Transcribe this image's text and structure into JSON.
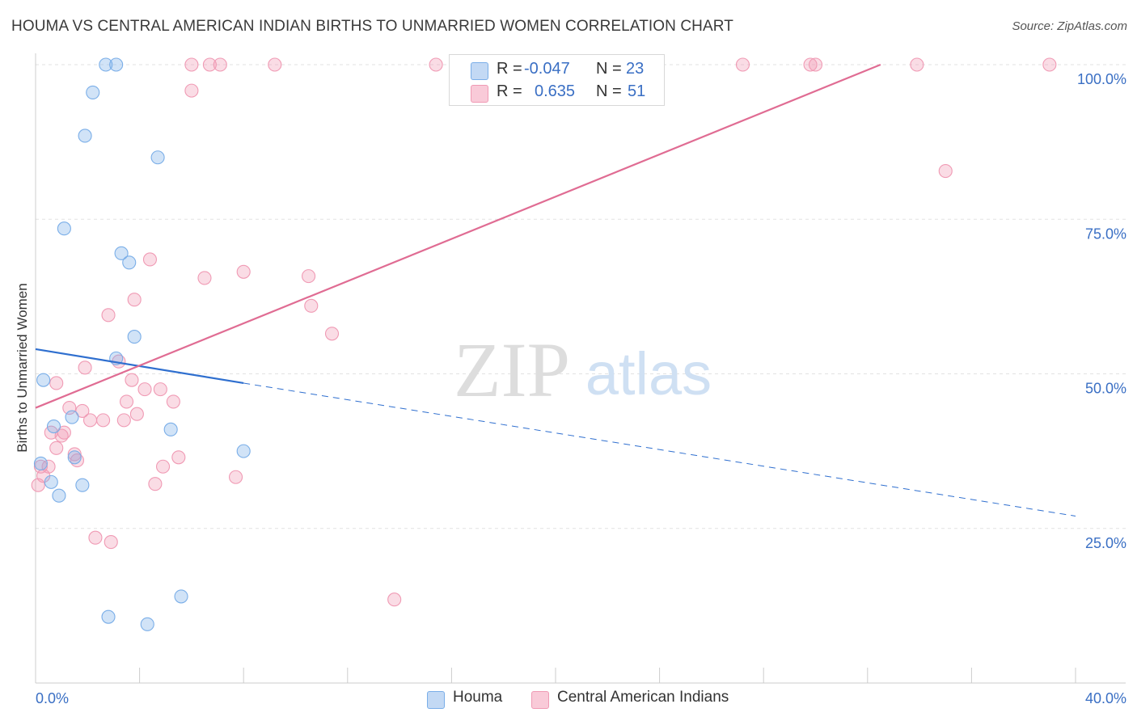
{
  "title": "HOUMA VS CENTRAL AMERICAN INDIAN BIRTHS TO UNMARRIED WOMEN CORRELATION CHART",
  "source": "Source: ZipAtlas.com",
  "watermark": {
    "zip": "ZIP",
    "atlas": "atlas"
  },
  "legend": {
    "rows": [
      {
        "r_label": "R =",
        "r_value": "-0.047",
        "n_label": "N =",
        "n_value": "23"
      },
      {
        "r_label": "R =",
        "r_value": "0.635",
        "n_label": "N =",
        "n_value": "51"
      }
    ]
  },
  "bottom_legend": {
    "houma": "Houma",
    "cai": "Central American Indians"
  },
  "chart_data": {
    "type": "scatter",
    "title": "HOUMA VS CENTRAL AMERICAN INDIAN BIRTHS TO UNMARRIED WOMEN CORRELATION CHART",
    "xlabel": "",
    "ylabel": "Births to Unmarried Women",
    "xlim": [
      0,
      40
    ],
    "ylim": [
      0,
      100
    ],
    "x_tick_labels": [
      "0.0%",
      "40.0%"
    ],
    "y_tick_labels": [
      "100.0%",
      "75.0%",
      "50.0%",
      "25.0%"
    ],
    "y_tick_values": [
      100,
      75,
      50,
      25
    ],
    "colors": {
      "houma": "#7aaee8",
      "houma_line": "#2f6fcf",
      "cai": "#f09ab4",
      "cai_line": "#e06c93",
      "tick_text": "#3a6fc4"
    },
    "series": [
      {
        "name": "Houma",
        "r": -0.047,
        "n": 23,
        "points": [
          [
            0.2,
            35.5
          ],
          [
            0.3,
            49
          ],
          [
            0.6,
            32.5
          ],
          [
            0.7,
            41.5
          ],
          [
            0.9,
            30.3
          ],
          [
            1.1,
            73.5
          ],
          [
            1.4,
            43
          ],
          [
            1.5,
            36.5
          ],
          [
            1.8,
            32
          ],
          [
            1.9,
            88.5
          ],
          [
            2.2,
            95.5
          ],
          [
            2.7,
            100
          ],
          [
            2.8,
            10.7
          ],
          [
            3.1,
            52.5
          ],
          [
            3.1,
            100
          ],
          [
            3.3,
            69.5
          ],
          [
            3.6,
            68
          ],
          [
            3.8,
            56
          ],
          [
            4.3,
            9.5
          ],
          [
            4.7,
            85
          ],
          [
            5.2,
            41
          ],
          [
            5.6,
            14
          ],
          [
            8.0,
            37.5
          ]
        ],
        "trend_solid": [
          [
            0,
            54
          ],
          [
            8.0,
            48.5
          ]
        ],
        "trend_dashed": [
          [
            8.0,
            48.5
          ],
          [
            40,
            27
          ]
        ]
      },
      {
        "name": "Central American Indians",
        "r": 0.635,
        "n": 51,
        "points": [
          [
            0.1,
            32
          ],
          [
            0.2,
            35
          ],
          [
            0.3,
            33.5
          ],
          [
            0.5,
            35
          ],
          [
            0.6,
            40.5
          ],
          [
            0.8,
            38
          ],
          [
            0.8,
            48.5
          ],
          [
            1.0,
            40
          ],
          [
            1.1,
            40.5
          ],
          [
            1.3,
            44.5
          ],
          [
            1.5,
            37
          ],
          [
            1.6,
            36
          ],
          [
            1.8,
            44
          ],
          [
            1.9,
            51
          ],
          [
            2.1,
            42.5
          ],
          [
            2.3,
            23.5
          ],
          [
            2.6,
            42.5
          ],
          [
            2.8,
            59.5
          ],
          [
            2.9,
            22.8
          ],
          [
            3.2,
            52
          ],
          [
            3.4,
            42.5
          ],
          [
            3.5,
            45.5
          ],
          [
            3.7,
            49
          ],
          [
            3.8,
            62
          ],
          [
            3.9,
            43.5
          ],
          [
            4.2,
            47.5
          ],
          [
            4.4,
            68.5
          ],
          [
            4.6,
            32.2
          ],
          [
            4.8,
            47.5
          ],
          [
            4.9,
            35
          ],
          [
            5.3,
            45.5
          ],
          [
            5.5,
            36.5
          ],
          [
            6.0,
            95.8
          ],
          [
            6.0,
            100
          ],
          [
            6.5,
            65.5
          ],
          [
            6.7,
            100
          ],
          [
            7.1,
            100
          ],
          [
            7.7,
            33.3
          ],
          [
            8.0,
            66.5
          ],
          [
            9.2,
            100
          ],
          [
            10.5,
            65.8
          ],
          [
            10.6,
            61
          ],
          [
            11.4,
            56.5
          ],
          [
            13.8,
            13.5
          ],
          [
            15.4,
            100
          ],
          [
            27.2,
            100
          ],
          [
            29.8,
            100
          ],
          [
            30.0,
            100
          ],
          [
            33.9,
            100
          ],
          [
            35.0,
            82.8
          ],
          [
            39.0,
            100
          ]
        ],
        "trend_solid": [
          [
            0,
            44.5
          ],
          [
            32.5,
            100
          ]
        ]
      }
    ]
  }
}
